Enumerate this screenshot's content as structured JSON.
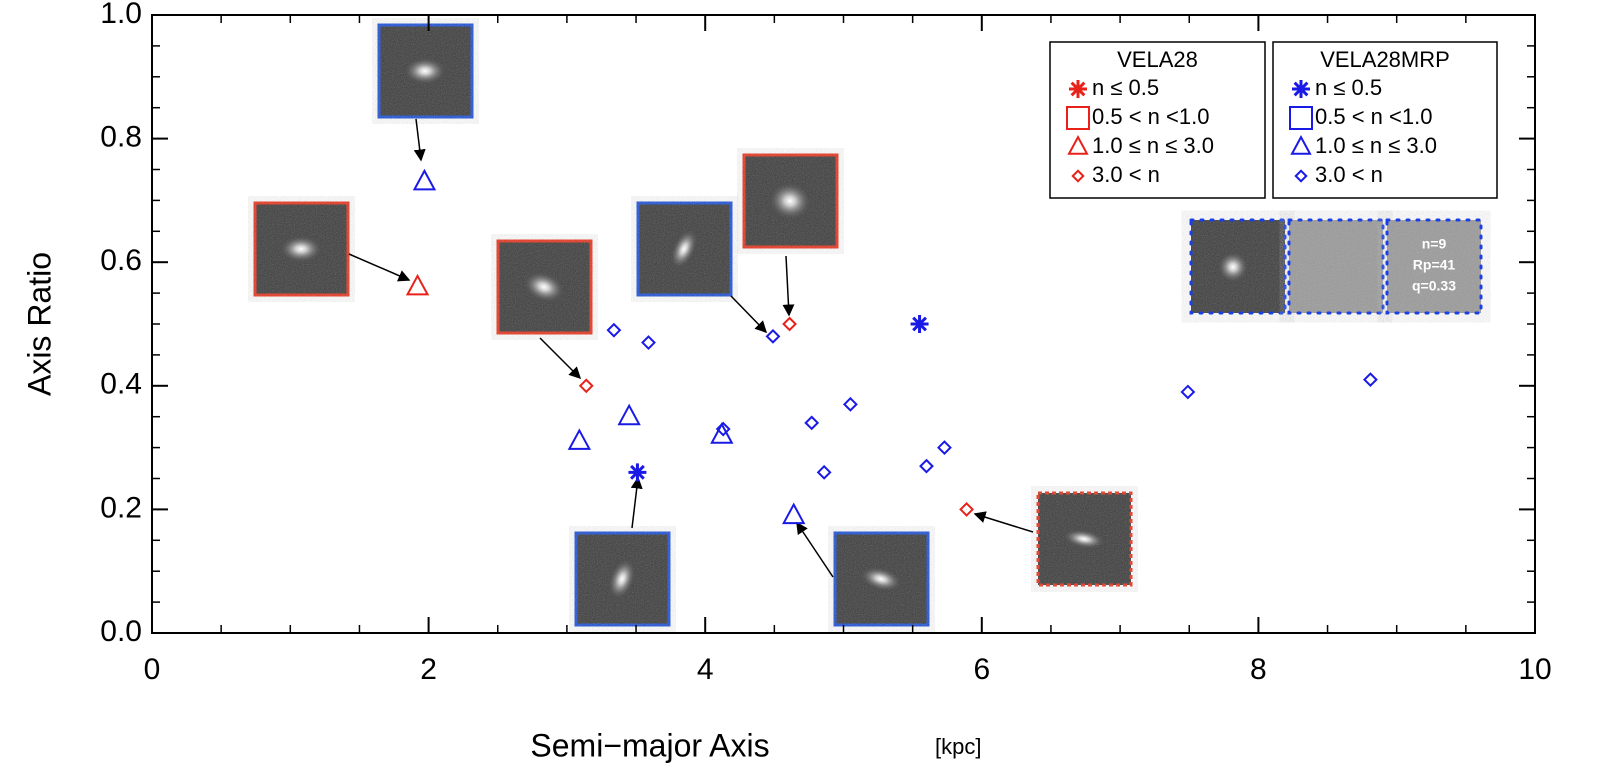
{
  "chart_data": {
    "type": "scatter",
    "xlabel": "Semi−major Axis",
    "xunit": "[kpc]",
    "ylabel": "Axis Ratio",
    "xlim": [
      0,
      10
    ],
    "ylim": [
      0,
      1
    ],
    "xticks": [
      0,
      2,
      4,
      6,
      8,
      10
    ],
    "yticks": [
      {
        "value": 0,
        "label": "0.0"
      },
      0.2,
      0.4,
      0.6,
      0.8,
      {
        "value": 1,
        "label": "1.0"
      }
    ],
    "legend_titles": [
      "VELA28",
      "VELA28MRP"
    ],
    "series": [
      {
        "name": "n ≤ 0.5",
        "legend": 0,
        "color": "#e8221b",
        "marker": "asterisk",
        "x": [],
        "y": []
      },
      {
        "name": "0.5 < n <1.0",
        "legend": 0,
        "color": "#e8221b",
        "marker": "square",
        "x": [],
        "y": []
      },
      {
        "name": "1.0 ≤ n ≤ 3.0",
        "legend": 0,
        "color": "#e8221b",
        "marker": "triangle",
        "x": [
          1.92
        ],
        "y": [
          0.56
        ]
      },
      {
        "name": "3.0 < n",
        "legend": 0,
        "color": "#e8221b",
        "marker": "diamond",
        "x": [
          3.14,
          4.61,
          5.89
        ],
        "y": [
          0.4,
          0.5,
          0.2
        ]
      },
      {
        "name": "n ≤ 0.5",
        "legend": 1,
        "color": "#1a1ae6",
        "marker": "asterisk",
        "x": [
          3.51,
          5.55
        ],
        "y": [
          0.26,
          0.5
        ]
      },
      {
        "name": "0.5 < n <1.0",
        "legend": 1,
        "color": "#1a1ae6",
        "marker": "square",
        "x": [],
        "y": []
      },
      {
        "name": "1.0 ≤ n ≤ 3.0",
        "legend": 1,
        "color": "#1a1ae6",
        "marker": "triangle",
        "x": [
          1.97,
          3.09,
          3.45,
          4.12,
          4.64
        ],
        "y": [
          0.73,
          0.31,
          0.35,
          0.32,
          0.19
        ]
      },
      {
        "name": "3.0 < n",
        "legend": 1,
        "color": "#1a1ae6",
        "marker": "diamond",
        "x": [
          3.34,
          3.59,
          4.49,
          4.13,
          4.77,
          5.05,
          4.86,
          5.6,
          5.73,
          7.49,
          8.81
        ],
        "y": [
          0.49,
          0.47,
          0.48,
          0.33,
          0.34,
          0.37,
          0.26,
          0.27,
          0.3,
          0.39,
          0.41
        ]
      }
    ],
    "annotations": [
      "n=9",
      "Rp=41",
      "q=0.33"
    ]
  }
}
